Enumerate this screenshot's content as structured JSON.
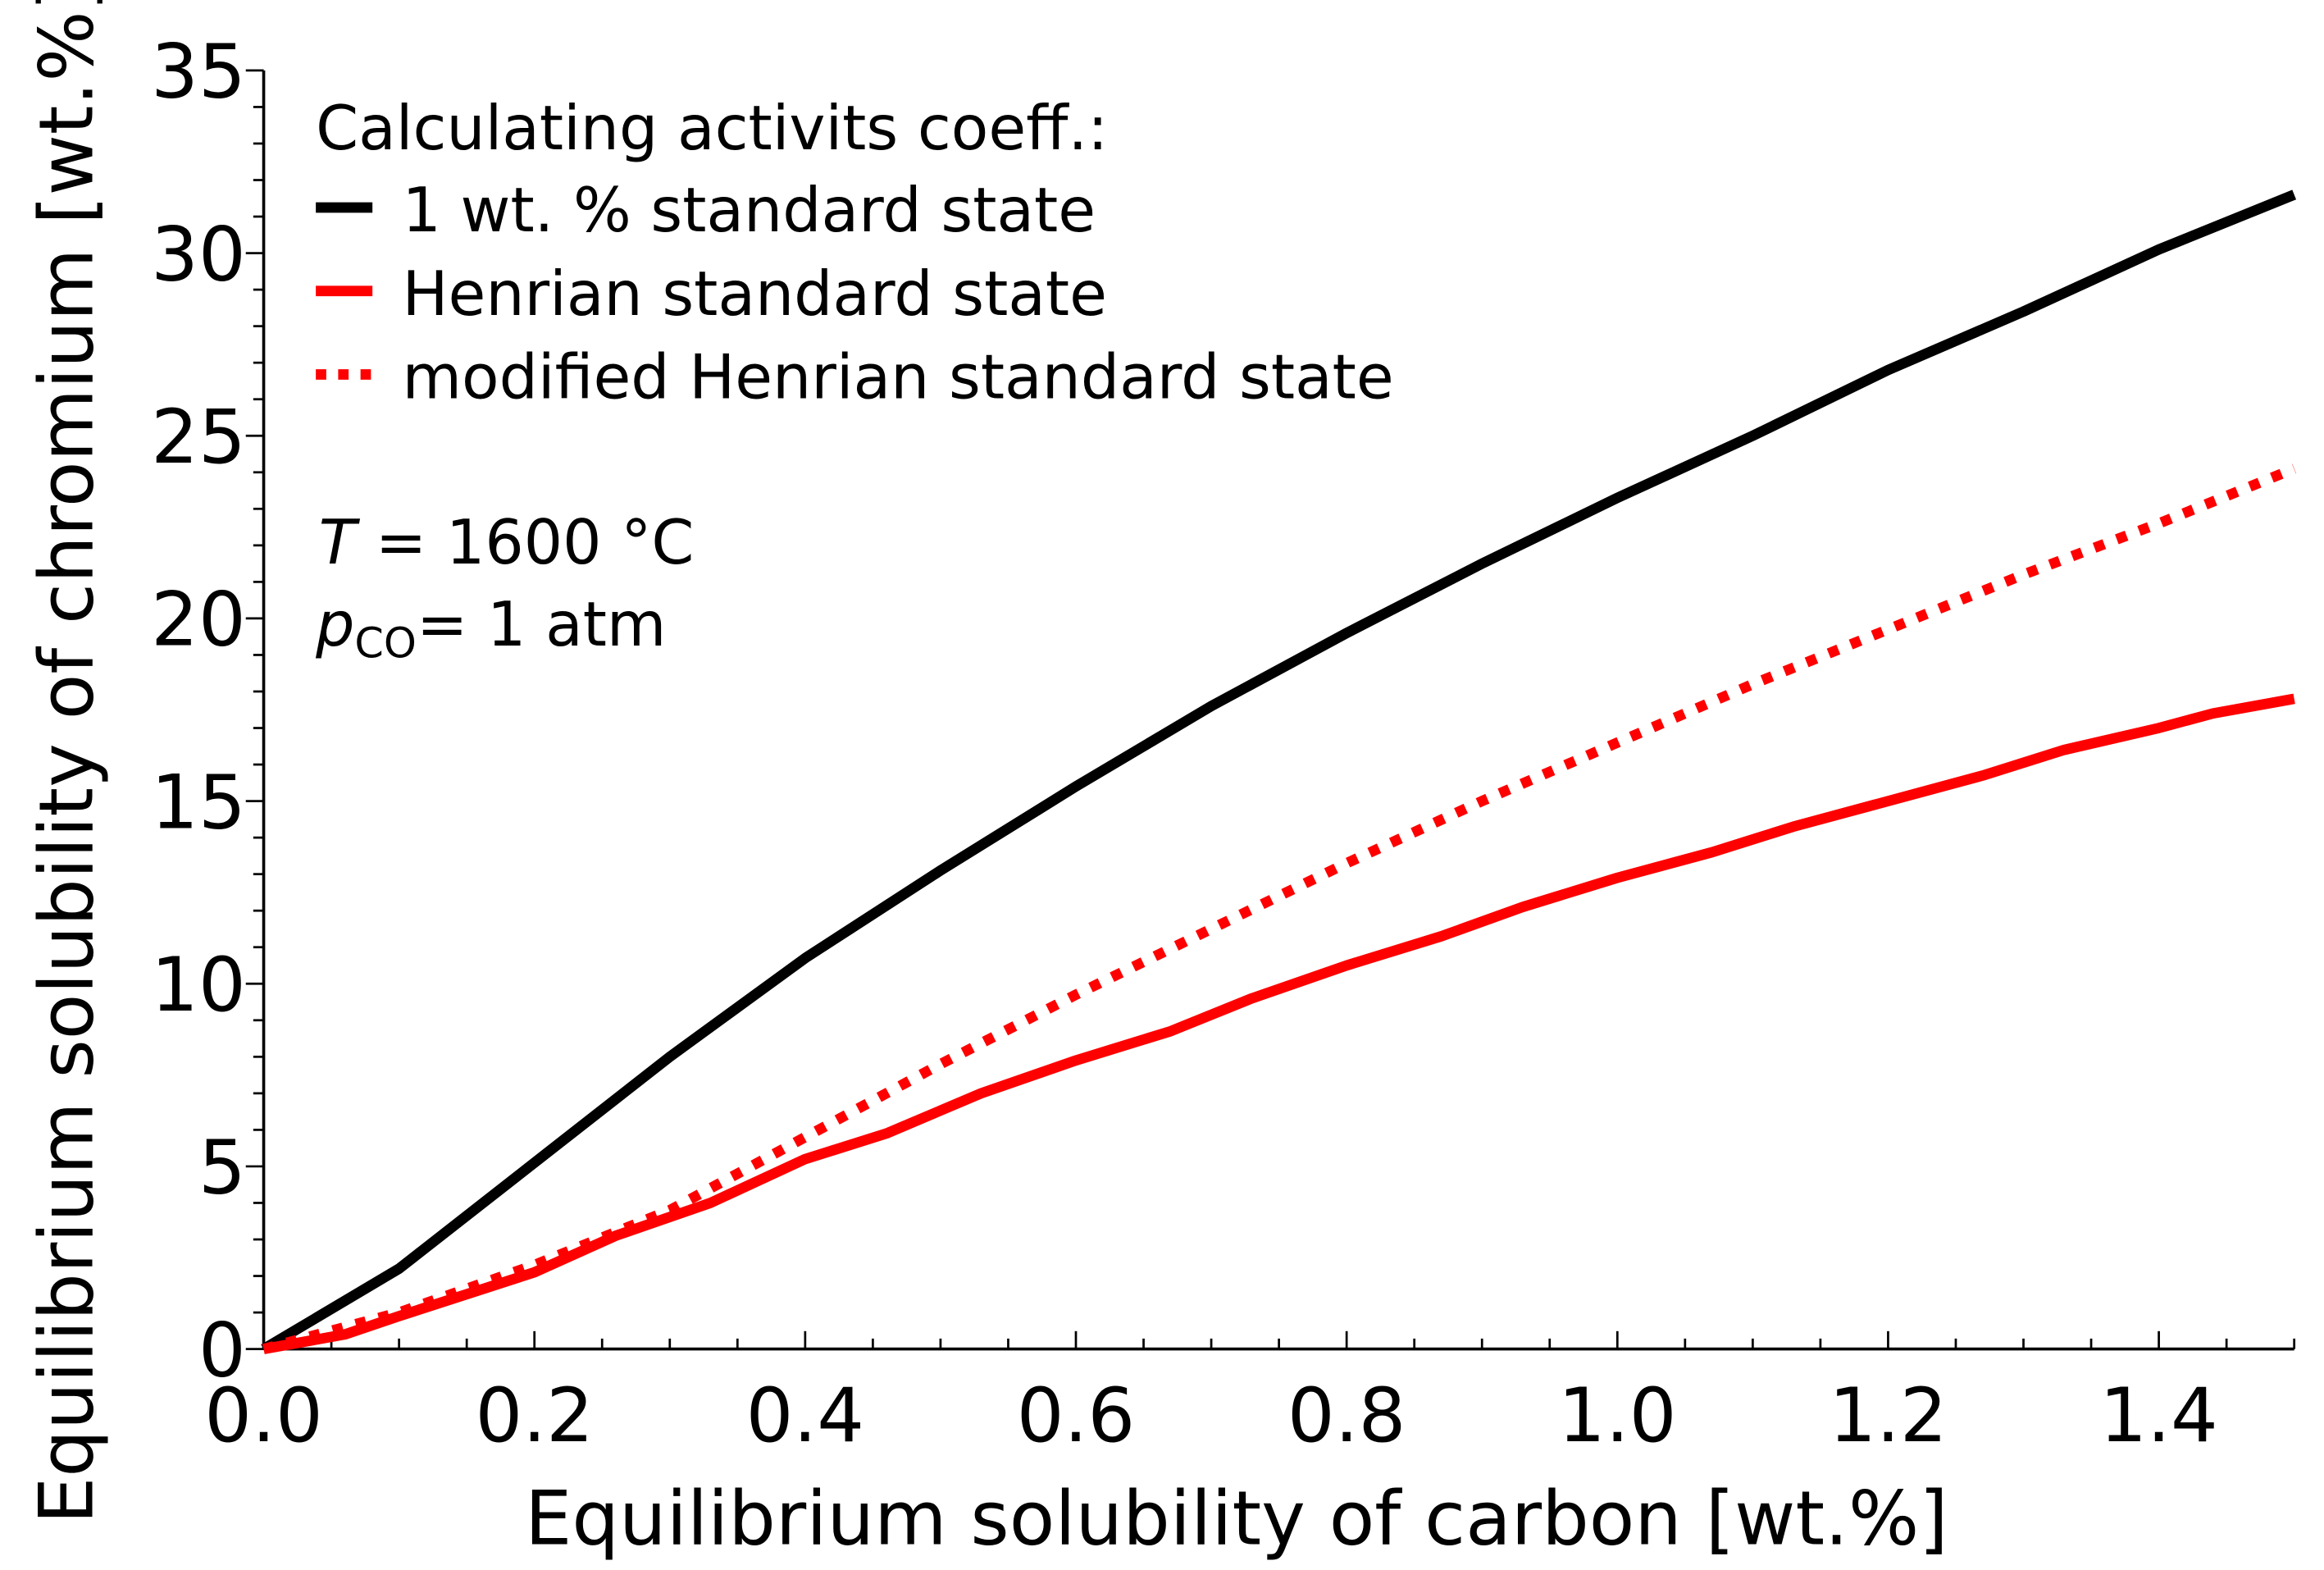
{
  "chart_data": {
    "type": "line",
    "title": "",
    "xlabel": "Equilibrium solubility of carbon [wt.%]",
    "ylabel": "Equilibrium solubility of chromium [wt.%]",
    "xlim": [
      0,
      1.5
    ],
    "ylim": [
      0,
      35
    ],
    "x_ticks": [
      "0.0",
      "0.2",
      "0.4",
      "0.6",
      "0.8",
      "1.0",
      "1.2",
      "1.4"
    ],
    "x_tick_values": [
      0,
      0.2,
      0.4,
      0.6,
      0.8,
      1.0,
      1.2,
      1.4
    ],
    "y_ticks": [
      "0",
      "5",
      "10",
      "15",
      "20",
      "25",
      "30",
      "35"
    ],
    "y_tick_values": [
      0,
      5,
      10,
      15,
      20,
      25,
      30,
      35
    ],
    "grid": false,
    "legend_title": "Calculating activits coeff.:",
    "legend_placement": "top-left",
    "annotation_T": {
      "symbol": "T",
      "text": " = 1600 °C"
    },
    "annotation_p": {
      "symbol": "p",
      "subscript": "CO",
      "text": "= 1 atm"
    },
    "series": [
      {
        "name": "1 wt. % standard state",
        "color": "#000000",
        "style": "solid",
        "x": [
          0,
          0.1,
          0.2,
          0.3,
          0.4,
          0.5,
          0.6,
          0.7,
          0.8,
          0.9,
          1.0,
          1.1,
          1.2,
          1.3,
          1.4,
          1.5
        ],
        "y": [
          0,
          2.2,
          5.1,
          8.0,
          10.7,
          13.1,
          15.4,
          17.6,
          19.6,
          21.5,
          23.3,
          25.0,
          26.8,
          28.4,
          30.1,
          31.6
        ]
      },
      {
        "name": "Henrian standard state",
        "color": "#ff0000",
        "style": "solid",
        "x": [
          0,
          0.06,
          0.1,
          0.2,
          0.26,
          0.33,
          0.4,
          0.46,
          0.53,
          0.6,
          0.67,
          0.73,
          0.8,
          0.87,
          0.93,
          1.0,
          1.07,
          1.13,
          1.2,
          1.27,
          1.33,
          1.4,
          1.44,
          1.5
        ],
        "y": [
          0,
          0.4,
          0.9,
          2.1,
          3.1,
          4.0,
          5.2,
          5.9,
          7.0,
          7.9,
          8.7,
          9.6,
          10.5,
          11.3,
          12.1,
          12.9,
          13.6,
          14.3,
          15.0,
          15.7,
          16.4,
          17.0,
          17.4,
          17.8
        ]
      },
      {
        "name": "modified Henrian standard state",
        "color": "#ff0000",
        "style": "dotted",
        "x": [
          0,
          0.1,
          0.2,
          0.3,
          0.4,
          0.5,
          0.6,
          0.7,
          0.8,
          0.9,
          1.0,
          1.1,
          1.2,
          1.3,
          1.4,
          1.5
        ],
        "y": [
          0,
          1.0,
          2.3,
          3.8,
          5.8,
          7.8,
          9.7,
          11.5,
          13.3,
          15.0,
          16.6,
          18.2,
          19.7,
          21.2,
          22.6,
          24.1
        ]
      }
    ]
  }
}
